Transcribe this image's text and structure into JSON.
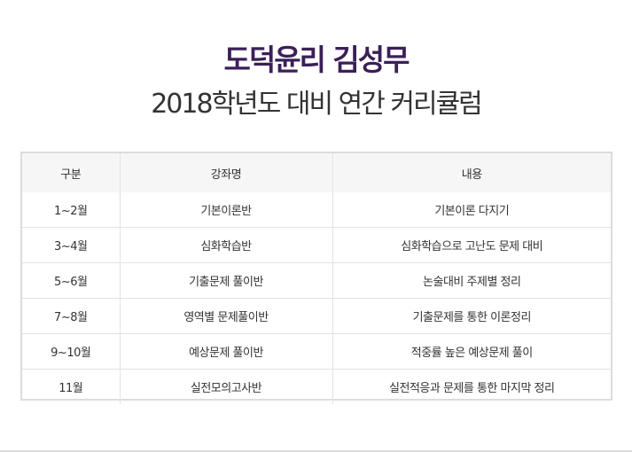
{
  "header": {
    "title": "도덕윤리 김성무",
    "subtitle": "2018학년도 대비 연간 커리큘럼"
  },
  "table": {
    "headers": [
      "구분",
      "강좌명",
      "내용"
    ],
    "rows": [
      [
        "1~2월",
        "기본이론반",
        "기본이론 다지기"
      ],
      [
        "3~4월",
        "심화학습반",
        "심화학습으로 고난도 문제 대비"
      ],
      [
        "5~6월",
        "기출문제 풀이반",
        "논술대비 주제별 정리"
      ],
      [
        "7~8월",
        "영역별 문제풀이반",
        "기출문제를 통한 이론정리"
      ],
      [
        "9~10월",
        "예상문제 풀이반",
        "적중률 높은 예상문제 풀이"
      ],
      [
        "11월",
        "실전모의고사반",
        "실전적응과 문제를 통한 마지막 정리"
      ]
    ]
  },
  "colors": {
    "title": "#3b1f58",
    "text": "#333333",
    "header_bg": "#f6f6f6",
    "border": "#dcdcdc"
  }
}
